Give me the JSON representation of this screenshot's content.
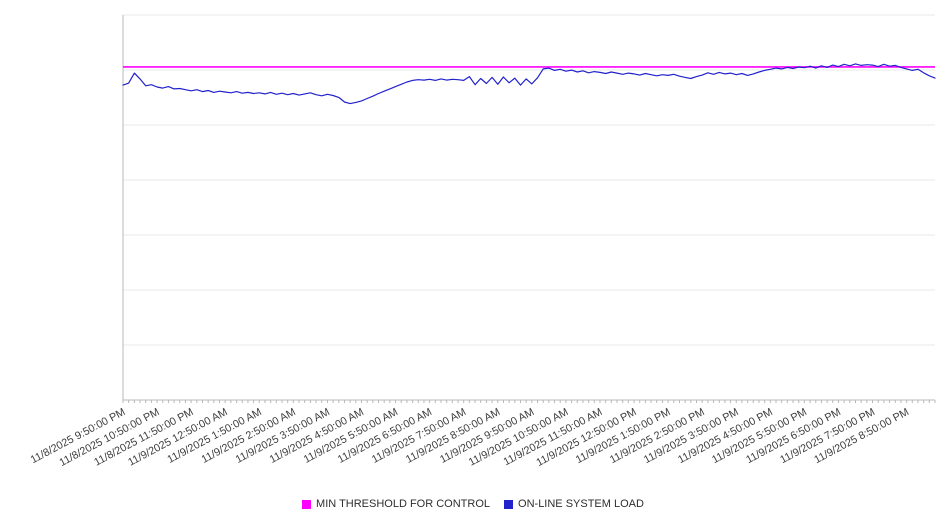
{
  "page": {
    "background": "#ffffff"
  },
  "legend": {
    "items": [
      {
        "label": "MIN THRESHOLD FOR CONTROL",
        "color": "#ff00ff"
      },
      {
        "label": "ON-LINE SYSTEM LOAD",
        "color": "#2222cc"
      }
    ]
  },
  "chart_data": {
    "type": "line",
    "title": "",
    "xlabel": "",
    "ylabel": "",
    "legend_position": "bottom",
    "grid": true,
    "y_axis": {
      "min": 0,
      "max": 100,
      "tick_labels_visible": false,
      "gridline_intervals": 7
    },
    "x_interval_minutes": 10,
    "x_start": "11/8/2025 9:50:00 PM",
    "x_tick_labels": [
      "11/8/2025 9:50:00 PM",
      "11/8/2025 10:50:00 PM",
      "11/8/2025 11:50:00 PM",
      "11/9/2025 12:50:00 AM",
      "11/9/2025 1:50:00 AM",
      "11/9/2025 2:50:00 AM",
      "11/9/2025 3:50:00 AM",
      "11/9/2025 4:50:00 AM",
      "11/9/2025 5:50:00 AM",
      "11/9/2025 6:50:00 AM",
      "11/9/2025 7:50:00 AM",
      "11/9/2025 8:50:00 AM",
      "11/9/2025 9:50:00 AM",
      "11/9/2025 10:50:00 AM",
      "11/9/2025 11:50:00 AM",
      "11/9/2025 12:50:00 PM",
      "11/9/2025 1:50:00 PM",
      "11/9/2025 2:50:00 PM",
      "11/9/2025 3:50:00 PM",
      "11/9/2025 4:50:00 PM",
      "11/9/2025 5:50:00 PM",
      "11/9/2025 6:50:00 PM",
      "11/9/2025 7:50:00 PM",
      "11/9/2025 8:50:00 PM"
    ],
    "series": [
      {
        "name": "MIN THRESHOLD FOR CONTROL",
        "color": "#ff00ff",
        "constant_value": 86.5
      },
      {
        "name": "ON-LINE SYSTEM LOAD",
        "color": "#2222cc",
        "values": [
          81.8,
          82.3,
          84.9,
          83.4,
          81.6,
          81.9,
          81.3,
          81.0,
          81.4,
          80.8,
          80.9,
          80.6,
          80.3,
          80.6,
          80.1,
          80.4,
          79.9,
          80.2,
          80.0,
          79.8,
          80.1,
          79.7,
          79.9,
          79.6,
          79.8,
          79.5,
          79.9,
          79.4,
          79.7,
          79.3,
          79.6,
          79.2,
          79.5,
          79.8,
          79.3,
          79.0,
          79.4,
          79.1,
          78.6,
          77.4,
          77.0,
          77.3,
          77.7,
          78.3,
          78.9,
          79.6,
          80.2,
          80.8,
          81.4,
          82.0,
          82.6,
          83.0,
          83.2,
          83.1,
          83.3,
          83.0,
          83.4,
          83.1,
          83.3,
          83.2,
          83.0,
          84.0,
          81.9,
          83.5,
          82.2,
          83.8,
          82.0,
          83.9,
          82.4,
          83.6,
          81.8,
          83.4,
          82.1,
          83.7,
          86.0,
          86.2,
          85.6,
          85.9,
          85.4,
          85.7,
          85.2,
          85.5,
          85.0,
          85.3,
          85.1,
          84.8,
          85.2,
          84.9,
          84.6,
          84.9,
          84.7,
          84.4,
          84.8,
          84.5,
          84.2,
          84.5,
          84.3,
          84.6,
          84.1,
          83.8,
          83.5,
          84.0,
          84.4,
          85.0,
          84.6,
          85.1,
          84.7,
          84.9,
          84.5,
          84.8,
          84.3,
          84.7,
          85.2,
          85.6,
          85.9,
          86.2,
          86.0,
          86.4,
          86.1,
          86.5,
          86.3,
          86.7,
          86.2,
          86.8,
          86.4,
          87.0,
          86.6,
          87.2,
          86.8,
          87.3,
          86.9,
          87.1,
          87.0,
          86.6,
          87.2,
          86.7,
          86.9,
          86.4,
          86.0,
          85.6,
          85.9,
          85.0,
          84.2,
          83.6
        ]
      }
    ],
    "colors": {
      "grid": "#e8e8e8",
      "axis": "#b8b8b8",
      "tick_label": "#3d3d3d"
    }
  }
}
